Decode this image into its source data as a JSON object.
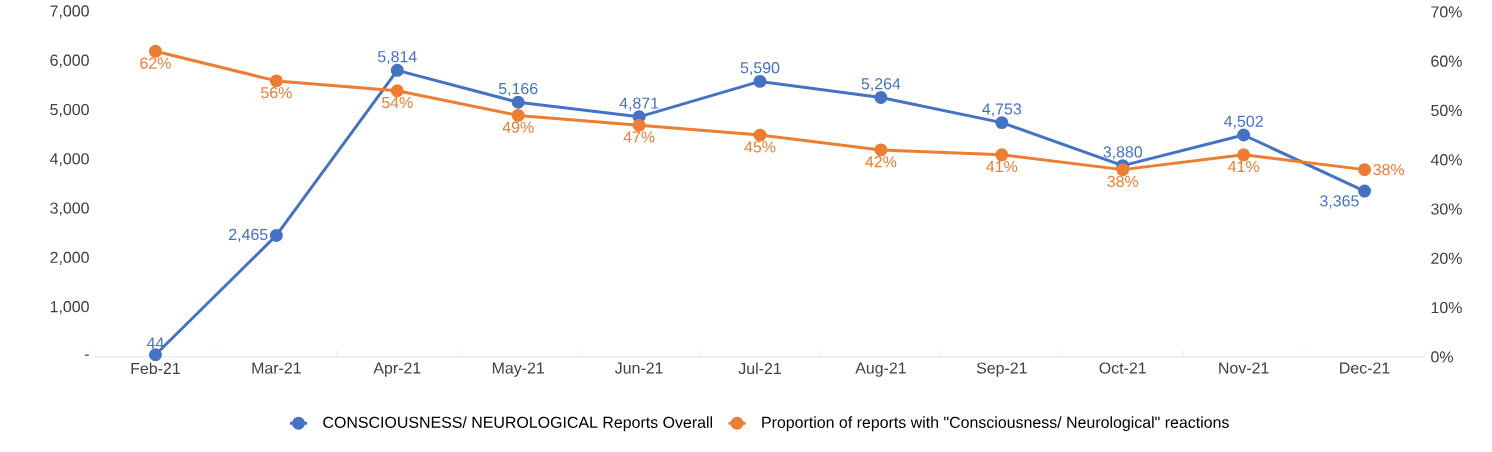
{
  "chart_data": {
    "type": "line",
    "categories": [
      "Feb-21",
      "Mar-21",
      "Apr-21",
      "May-21",
      "Jun-21",
      "Jul-21",
      "Aug-21",
      "Sep-21",
      "Oct-21",
      "Nov-21",
      "Dec-21"
    ],
    "series": [
      {
        "name": "CONSCIOUSNESS/ NEUROLOGICAL Reports Overall",
        "color": "#4472c4",
        "values": [
          44,
          2465,
          5814,
          5166,
          4871,
          5590,
          5264,
          4753,
          3880,
          4502,
          3365
        ],
        "value_labels": [
          "44",
          "2,465",
          "5,814",
          "5,166",
          "4,871",
          "5,590",
          "5,264",
          "4,753",
          "3,880",
          "4,502",
          "3,365"
        ]
      },
      {
        "name": "Proportion of reports with \"Consciousness/ Neurological\" reactions",
        "color": "#ed7d31",
        "axis": "y2",
        "values": [
          62,
          56,
          54,
          49,
          47,
          45,
          42,
          41,
          38,
          41,
          38
        ],
        "value_labels": [
          "62%",
          "56%",
          "54%",
          "49%",
          "47%",
          "45%",
          "42%",
          "41%",
          "38%",
          "41%",
          "38%"
        ]
      }
    ],
    "ylim": [
      0,
      7000
    ],
    "yticks": [
      {
        "value": 0,
        "label": "-"
      },
      {
        "value": 1000,
        "label": "1,000"
      },
      {
        "value": 2000,
        "label": "2,000"
      },
      {
        "value": 3000,
        "label": "3,000"
      },
      {
        "value": 4000,
        "label": "4,000"
      },
      {
        "value": 5000,
        "label": "5,000"
      },
      {
        "value": 6000,
        "label": "6,000"
      },
      {
        "value": 7000,
        "label": "7,000"
      }
    ],
    "y2lim": [
      0,
      70
    ],
    "y2ticks": [
      {
        "value": 0,
        "label": "0%"
      },
      {
        "value": 10,
        "label": "10%"
      },
      {
        "value": 20,
        "label": "20%"
      },
      {
        "value": 30,
        "label": "30%"
      },
      {
        "value": 40,
        "label": "40%"
      },
      {
        "value": 50,
        "label": "50%"
      },
      {
        "value": 60,
        "label": "60%"
      },
      {
        "value": 70,
        "label": "70%"
      }
    ],
    "legend": "bottom",
    "marker": "circle",
    "line_style": "solid",
    "grid": false
  }
}
